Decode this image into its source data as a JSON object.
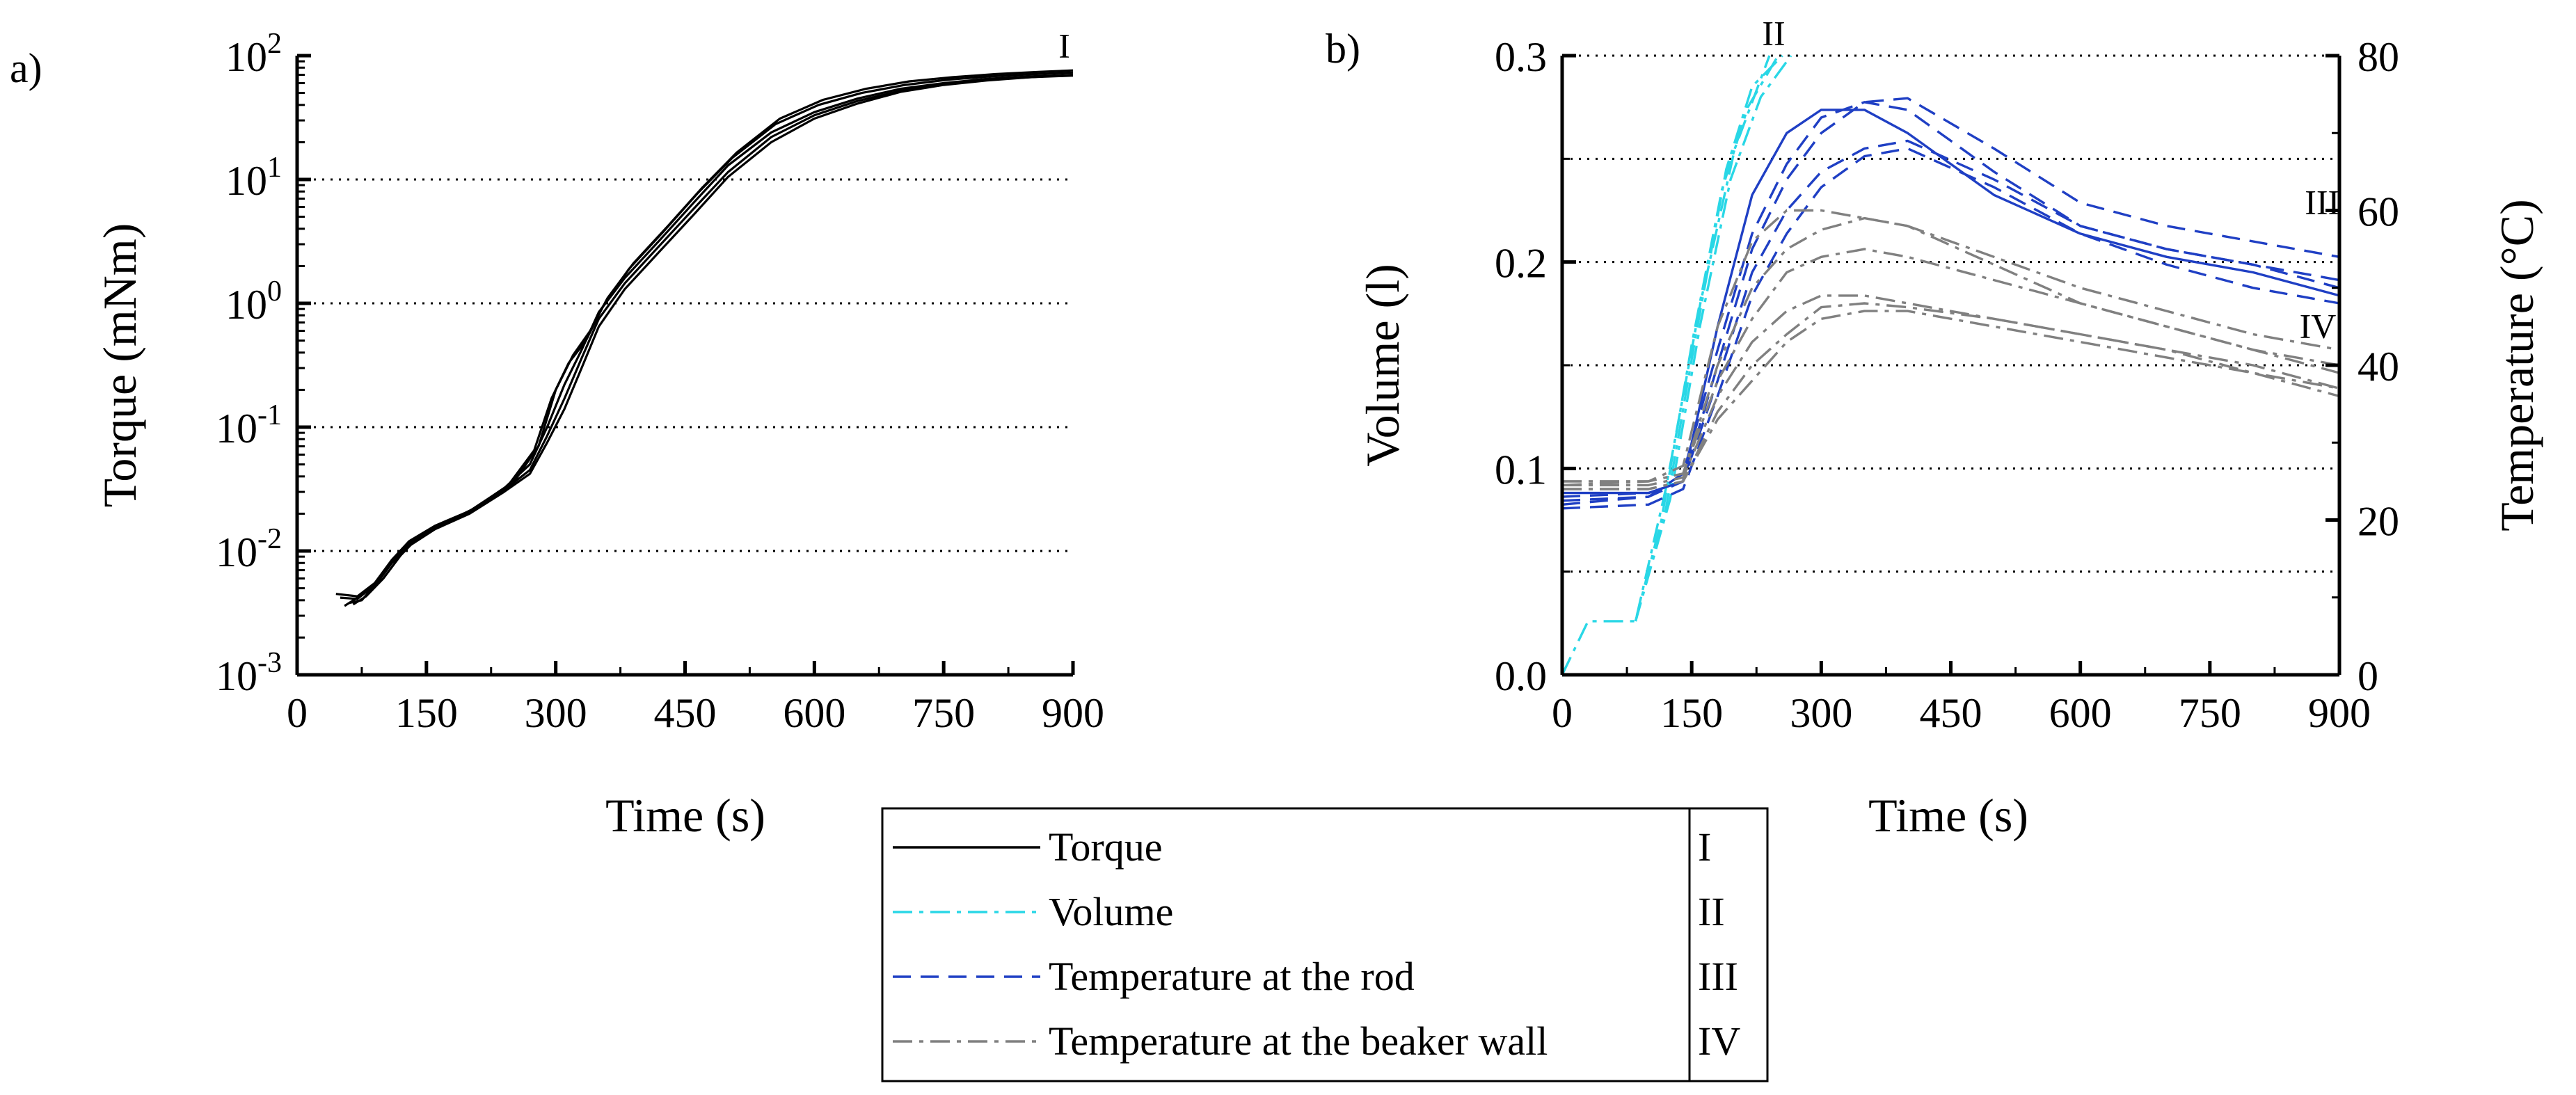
{
  "chart_data": [
    {
      "panel_label": "a)",
      "type": "line",
      "title": "",
      "xlabel": "Time (s)",
      "ylabel": "Torque (mNm)",
      "xlim": [
        0,
        900
      ],
      "ylim": [
        0.001,
        100
      ],
      "yscale": "log",
      "x_ticks": [
        "0",
        "150",
        "300",
        "450",
        "600",
        "750",
        "900"
      ],
      "y_ticks": [
        {
          "base": "10",
          "exp": "-3"
        },
        {
          "base": "10",
          "exp": "-2"
        },
        {
          "base": "10",
          "exp": "-1"
        },
        {
          "base": "10",
          "exp": "0"
        },
        {
          "base": "10",
          "exp": "1"
        },
        {
          "base": "10",
          "exp": "2"
        }
      ],
      "grid": "horizontal dotted",
      "annotations": [
        {
          "text": "I",
          "x": 890,
          "y": 110
        }
      ],
      "series": [
        {
          "name": "Torque run 1",
          "color": "#000000",
          "x": [
            45,
            70,
            90,
            110,
            130,
            160,
            200,
            240,
            270,
            290,
            310,
            330,
            350,
            380,
            420,
            460,
            500,
            550,
            600,
            650,
            700,
            750,
            800,
            850,
            900
          ],
          "y": [
            0.0045,
            0.0043,
            0.0055,
            0.0085,
            0.012,
            0.016,
            0.021,
            0.032,
            0.05,
            0.1,
            0.22,
            0.42,
            0.85,
            1.6,
            3.2,
            6.5,
            13,
            24,
            35,
            45,
            54,
            60,
            65,
            68,
            70
          ]
        },
        {
          "name": "Torque run 2",
          "color": "#000000",
          "x": [
            55,
            70,
            90,
            110,
            130,
            160,
            200,
            240,
            270,
            290,
            310,
            330,
            350,
            380,
            420,
            460,
            500,
            550,
            600,
            650,
            700,
            750,
            800,
            850,
            900
          ],
          "y": [
            0.0036,
            0.0042,
            0.0052,
            0.008,
            0.011,
            0.015,
            0.02,
            0.03,
            0.042,
            0.075,
            0.14,
            0.3,
            0.65,
            1.3,
            2.6,
            5.2,
            10.5,
            20,
            31,
            41,
            51,
            58,
            63,
            67,
            69
          ]
        },
        {
          "name": "Torque run 3",
          "color": "#000000",
          "x": [
            60,
            75,
            95,
            115,
            135,
            165,
            205,
            245,
            275,
            295,
            315,
            335,
            355,
            385,
            425,
            465,
            505,
            555,
            605,
            655,
            705,
            755,
            805,
            855,
            900
          ],
          "y": [
            0.0038,
            0.004,
            0.0058,
            0.009,
            0.0125,
            0.016,
            0.022,
            0.034,
            0.065,
            0.17,
            0.33,
            0.5,
            0.95,
            1.9,
            3.8,
            7.8,
            15,
            28,
            40,
            50,
            58,
            64,
            68,
            71,
            73
          ]
        },
        {
          "name": "Torque run 4",
          "color": "#000000",
          "x": [
            50,
            70,
            90,
            110,
            130,
            160,
            200,
            240,
            270,
            290,
            310,
            330,
            350,
            380,
            420,
            460,
            500,
            550,
            600,
            650,
            700,
            750,
            800,
            850,
            900
          ],
          "y": [
            0.0042,
            0.0041,
            0.0053,
            0.0082,
            0.0115,
            0.0155,
            0.0205,
            0.031,
            0.045,
            0.085,
            0.17,
            0.36,
            0.75,
            1.45,
            2.9,
            5.8,
            11.5,
            22,
            33,
            43,
            52,
            59,
            64,
            67,
            70
          ]
        },
        {
          "name": "Torque run 5",
          "color": "#000000",
          "x": [
            65,
            80,
            100,
            120,
            140,
            170,
            210,
            250,
            280,
            300,
            320,
            340,
            360,
            390,
            430,
            470,
            510,
            560,
            610,
            660,
            710,
            760,
            810,
            860,
            900
          ],
          "y": [
            0.0037,
            0.0043,
            0.006,
            0.0092,
            0.0128,
            0.0165,
            0.0225,
            0.035,
            0.07,
            0.2,
            0.38,
            0.6,
            1.1,
            2.1,
            4.2,
            8.6,
            16.5,
            31,
            44,
            54,
            62,
            67,
            71,
            74,
            76
          ]
        }
      ]
    },
    {
      "panel_label": "b)",
      "type": "line",
      "title": "",
      "xlabel": "Time (s)",
      "ylabel": "Volume (l)",
      "y2label": "Temperature (°C)",
      "xlim": [
        0,
        900
      ],
      "ylim": [
        0,
        0.3
      ],
      "y2lim": [
        0,
        80
      ],
      "x_ticks": [
        "0",
        "150",
        "300",
        "450",
        "600",
        "750",
        "900"
      ],
      "y_ticks": [
        "0.0",
        "0.1",
        "0.2",
        "0.3"
      ],
      "y2_ticks": [
        "0",
        "20",
        "40",
        "60",
        "80"
      ],
      "grid": "horizontal dotted",
      "annotations": [
        {
          "text": "II",
          "x": 245,
          "y": 0.31
        },
        {
          "text": "III",
          "x": 880,
          "y": 0.228
        },
        {
          "text": "IV",
          "x": 875,
          "y": 0.168
        }
      ],
      "series": [
        {
          "name": "Volume run 1",
          "group": "Volume",
          "axis": "left",
          "color": "#29d7e6",
          "dash": "dashdot",
          "x": [
            0,
            30,
            85,
            120,
            160,
            200,
            240
          ],
          "y": [
            0,
            0.026,
            0.026,
            0.09,
            0.18,
            0.255,
            0.3
          ]
        },
        {
          "name": "Volume run 2",
          "group": "Volume",
          "axis": "left",
          "color": "#29d7e6",
          "dash": "dashdot",
          "x": [
            85,
            115,
            150,
            185,
            215,
            250
          ],
          "y": [
            0.026,
            0.075,
            0.16,
            0.235,
            0.275,
            0.3
          ]
        },
        {
          "name": "Volume run 3",
          "group": "Volume",
          "axis": "left",
          "color": "#29d7e6",
          "dash": "dashdot",
          "x": [
            85,
            125,
            160,
            195,
            230,
            265
          ],
          "y": [
            0.026,
            0.085,
            0.17,
            0.24,
            0.28,
            0.3
          ]
        },
        {
          "name": "Volume run 4",
          "group": "Volume",
          "axis": "left",
          "color": "#29d7e6",
          "dash": "dashdot",
          "x": [
            85,
            120,
            155,
            190,
            220,
            255
          ],
          "y": [
            0.026,
            0.08,
            0.165,
            0.245,
            0.285,
            0.3
          ]
        },
        {
          "name": "Rod temperature run 1",
          "group": "Temperature at the rod",
          "axis": "right",
          "color": "#1f3fc4",
          "dash": "solid",
          "x": [
            0,
            100,
            140,
            180,
            220,
            260,
            300,
            350,
            400,
            500,
            600,
            700,
            800,
            900
          ],
          "y": [
            23.5,
            23.5,
            25,
            45,
            62,
            70,
            73,
            73,
            70,
            62,
            57,
            54,
            52,
            49
          ]
        },
        {
          "name": "Rod temperature run 2",
          "group": "Temperature at the rod",
          "axis": "right",
          "color": "#1f3fc4",
          "dash": "dashed",
          "x": [
            0,
            100,
            140,
            180,
            220,
            260,
            300,
            350,
            400,
            500,
            600,
            700,
            800,
            900
          ],
          "y": [
            22,
            23,
            26,
            42,
            57,
            66,
            72,
            74,
            73,
            65,
            58,
            55,
            53,
            51
          ]
        },
        {
          "name": "Rod temperature run 3",
          "group": "Temperature at the rod",
          "axis": "right",
          "color": "#1f3fc4",
          "dash": "dashed",
          "x": [
            0,
            100,
            140,
            180,
            220,
            260,
            300,
            350,
            400,
            500,
            600,
            700,
            800,
            900
          ],
          "y": [
            22.5,
            23,
            25,
            40,
            55,
            64,
            70,
            74,
            74.5,
            68,
            61,
            58,
            56,
            54
          ]
        },
        {
          "name": "Rod temperature run 4",
          "group": "Temperature at the rod",
          "axis": "right",
          "color": "#1f3fc4",
          "dash": "dashed",
          "x": [
            0,
            100,
            140,
            180,
            220,
            260,
            300,
            350,
            400,
            500,
            600,
            700,
            800,
            900
          ],
          "y": [
            23,
            23.5,
            25,
            38,
            52,
            60,
            65,
            68,
            69,
            64,
            58,
            55,
            53,
            50
          ]
        },
        {
          "name": "Rod temperature run 5",
          "group": "Temperature at the rod",
          "axis": "right",
          "color": "#1f3fc4",
          "dash": "dashed",
          "x": [
            0,
            100,
            140,
            180,
            220,
            260,
            300,
            350,
            400,
            500,
            600,
            700,
            800,
            900
          ],
          "y": [
            21.5,
            22,
            24,
            36,
            49,
            57,
            63,
            67,
            68,
            63,
            57,
            53,
            50,
            48
          ]
        },
        {
          "name": "Wall temperature run 1",
          "group": "Temperature at the beaker wall",
          "axis": "right",
          "color": "#808080",
          "dash": "dashdot",
          "x": [
            0,
            100,
            140,
            180,
            220,
            260,
            300,
            350,
            400,
            500,
            600,
            700,
            800,
            900
          ],
          "y": [
            25,
            25,
            27,
            45,
            56,
            60,
            60,
            59,
            58,
            54,
            50,
            47,
            44,
            42
          ]
        },
        {
          "name": "Wall temperature run 2",
          "group": "Temperature at the beaker wall",
          "axis": "right",
          "color": "#808080",
          "dash": "dashdot",
          "x": [
            0,
            100,
            140,
            180,
            220,
            260,
            300,
            350,
            400,
            500,
            600,
            700,
            800,
            900
          ],
          "y": [
            24.5,
            25,
            26,
            40,
            50,
            55,
            57.5,
            59,
            58,
            53,
            48,
            45,
            42,
            39
          ]
        },
        {
          "name": "Wall temperature run 3",
          "group": "Temperature at the beaker wall",
          "axis": "right",
          "color": "#808080",
          "dash": "dashdot",
          "x": [
            0,
            100,
            140,
            180,
            220,
            260,
            300,
            350,
            400,
            500,
            600,
            700,
            800,
            900
          ],
          "y": [
            25,
            25,
            26,
            38,
            46,
            52,
            54,
            55,
            54,
            51,
            48,
            45,
            42,
            40
          ]
        },
        {
          "name": "Wall temperature run 4",
          "group": "Temperature at the beaker wall",
          "axis": "right",
          "color": "#808080",
          "dash": "dashdot",
          "x": [
            0,
            100,
            140,
            180,
            220,
            260,
            300,
            350,
            400,
            500,
            600,
            700,
            800,
            900
          ],
          "y": [
            24.5,
            24.5,
            25.5,
            36,
            43,
            47,
            49,
            49,
            48,
            46,
            44,
            42,
            40,
            37
          ]
        },
        {
          "name": "Wall temperature run 5",
          "group": "Temperature at the beaker wall",
          "axis": "right",
          "color": "#808080",
          "dash": "dashdot",
          "x": [
            0,
            100,
            140,
            180,
            220,
            260,
            300,
            350,
            400,
            500,
            600,
            700,
            800,
            900
          ],
          "y": [
            24,
            24,
            25,
            34,
            40,
            44,
            47.5,
            48,
            47.5,
            46,
            44,
            42,
            39,
            36
          ]
        },
        {
          "name": "Wall temperature run 6",
          "group": "Temperature at the beaker wall",
          "axis": "right",
          "color": "#808080",
          "dash": "dashdot",
          "x": [
            0,
            100,
            140,
            180,
            220,
            260,
            300,
            350,
            400,
            500,
            600,
            700,
            800,
            900
          ],
          "y": [
            24,
            24,
            25,
            33,
            38,
            43,
            46,
            47,
            47,
            45,
            43,
            41,
            39,
            37
          ]
        }
      ]
    }
  ],
  "legend": {
    "placement": "bottom-center",
    "entries": [
      {
        "label": "Torque",
        "roman": "I",
        "color": "#000000",
        "dash": "solid"
      },
      {
        "label": "Volume",
        "roman": "II",
        "color": "#29d7e6",
        "dash": "dashdot"
      },
      {
        "label": "Temperature at the rod",
        "roman": "III",
        "color": "#1f3fc4",
        "dash": "dashed"
      },
      {
        "label": "Temperature at the beaker wall",
        "roman": "IV",
        "color": "#808080",
        "dash": "dashdot"
      }
    ]
  }
}
